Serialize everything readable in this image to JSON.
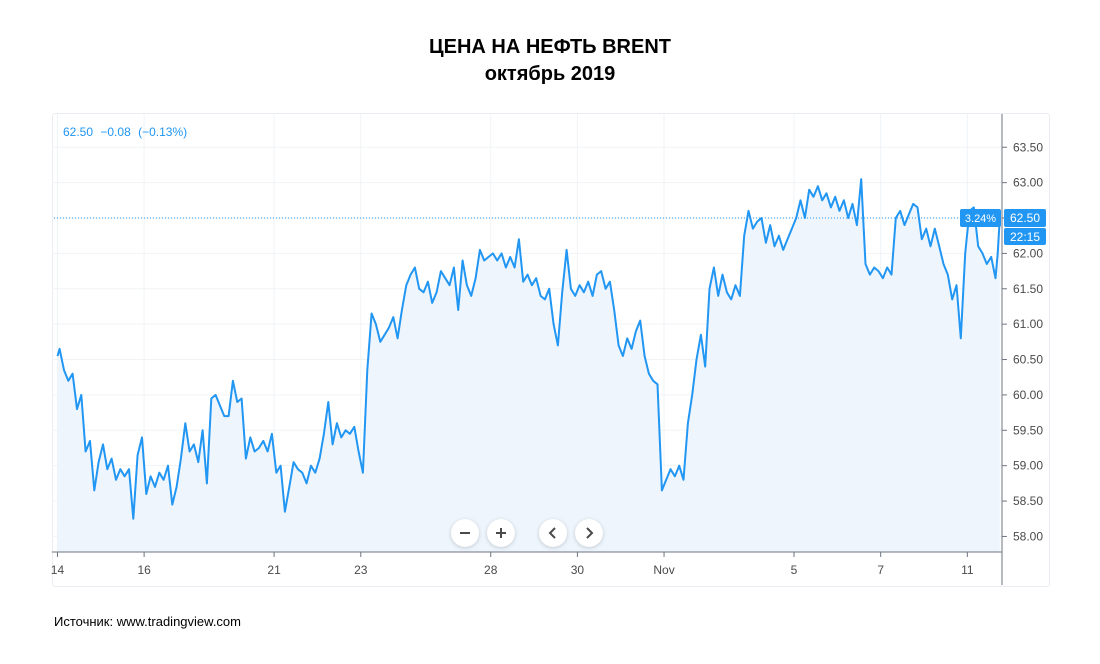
{
  "title": "ЦЕНА НА НЕФТЬ BRENT",
  "subtitle": "октябрь 2019",
  "legend": {
    "price": "62.50",
    "change": "−0.08",
    "change_pct": "(−0.13%)"
  },
  "source": "Источник: www.tradingview.com",
  "controls": {
    "zoom_out": "minus-icon",
    "zoom_in": "plus-icon",
    "scroll_left": "chevron-left-icon",
    "scroll_right": "chevron-right-icon"
  },
  "colors": {
    "line": "#2196f3",
    "area": "#eef5fd",
    "grid": "#f0f3f6",
    "axis_text": "#4a4a4a"
  },
  "chart_data": {
    "type": "area",
    "title": "ЦЕНА НА НЕФТЬ BRENT",
    "subtitle": "октябрь 2019",
    "x_axis": {
      "ticks": [
        {
          "label": "14",
          "x": 0
        },
        {
          "label": "16",
          "x": 2
        },
        {
          "label": "21",
          "x": 5
        },
        {
          "label": "23",
          "x": 7
        },
        {
          "label": "28",
          "x": 10
        },
        {
          "label": "30",
          "x": 12
        },
        {
          "label": "Nov",
          "x": 14
        },
        {
          "label": "5",
          "x": 17
        },
        {
          "label": "7",
          "x": 19
        },
        {
          "label": "11",
          "x": 21
        }
      ],
      "range": [
        -0.08,
        21.8
      ]
    },
    "y_axis": {
      "ticks": [
        "58.00",
        "58.50",
        "59.00",
        "59.50",
        "60.00",
        "60.50",
        "61.00",
        "61.50",
        "62.00",
        "62.50",
        "63.00",
        "63.50"
      ],
      "range": [
        57.78,
        63.97
      ]
    },
    "last_price": {
      "value": 62.5,
      "label": "62.50",
      "pct_label": "3.24%",
      "countdown": "22:15"
    },
    "grid": true,
    "series": [
      {
        "values": [
          [
            0.0,
            60.55
          ],
          [
            0.05,
            60.65
          ],
          [
            0.15,
            60.35
          ],
          [
            0.25,
            60.2
          ],
          [
            0.35,
            60.3
          ],
          [
            0.45,
            59.8
          ],
          [
            0.55,
            60.0
          ],
          [
            0.65,
            59.2
          ],
          [
            0.75,
            59.35
          ],
          [
            0.85,
            58.65
          ],
          [
            0.95,
            59.05
          ],
          [
            1.05,
            59.3
          ],
          [
            1.15,
            58.95
          ],
          [
            1.25,
            59.1
          ],
          [
            1.35,
            58.8
          ],
          [
            1.45,
            58.95
          ],
          [
            1.55,
            58.85
          ],
          [
            1.65,
            58.95
          ],
          [
            1.75,
            58.25
          ],
          [
            1.85,
            59.15
          ],
          [
            1.95,
            59.4
          ],
          [
            2.05,
            58.6
          ],
          [
            2.15,
            58.85
          ],
          [
            2.25,
            58.7
          ],
          [
            2.35,
            58.9
          ],
          [
            2.45,
            58.8
          ],
          [
            2.55,
            59.0
          ],
          [
            2.65,
            58.45
          ],
          [
            2.75,
            58.7
          ],
          [
            2.85,
            59.1
          ],
          [
            2.95,
            59.6
          ],
          [
            3.05,
            59.2
          ],
          [
            3.15,
            59.3
          ],
          [
            3.25,
            59.05
          ],
          [
            3.35,
            59.5
          ],
          [
            3.45,
            58.75
          ],
          [
            3.55,
            59.95
          ],
          [
            3.65,
            60.0
          ],
          [
            3.75,
            59.85
          ],
          [
            3.85,
            59.7
          ],
          [
            3.95,
            59.7
          ],
          [
            4.05,
            60.2
          ],
          [
            4.15,
            59.9
          ],
          [
            4.25,
            59.95
          ],
          [
            4.35,
            59.1
          ],
          [
            4.45,
            59.4
          ],
          [
            4.55,
            59.2
          ],
          [
            4.65,
            59.25
          ],
          [
            4.75,
            59.35
          ],
          [
            4.85,
            59.2
          ],
          [
            4.95,
            59.45
          ],
          [
            5.05,
            58.9
          ],
          [
            5.15,
            59.0
          ],
          [
            5.25,
            58.35
          ],
          [
            5.35,
            58.7
          ],
          [
            5.45,
            59.05
          ],
          [
            5.55,
            58.95
          ],
          [
            5.65,
            58.9
          ],
          [
            5.75,
            58.75
          ],
          [
            5.85,
            59.0
          ],
          [
            5.95,
            58.9
          ],
          [
            6.05,
            59.1
          ],
          [
            6.15,
            59.45
          ],
          [
            6.25,
            59.9
          ],
          [
            6.35,
            59.3
          ],
          [
            6.45,
            59.6
          ],
          [
            6.55,
            59.4
          ],
          [
            6.65,
            59.5
          ],
          [
            6.75,
            59.45
          ],
          [
            6.85,
            59.55
          ],
          [
            6.95,
            59.2
          ],
          [
            7.05,
            58.9
          ],
          [
            7.15,
            60.35
          ],
          [
            7.25,
            61.15
          ],
          [
            7.35,
            61.0
          ],
          [
            7.45,
            60.75
          ],
          [
            7.55,
            60.85
          ],
          [
            7.65,
            60.95
          ],
          [
            7.75,
            61.1
          ],
          [
            7.85,
            60.8
          ],
          [
            7.95,
            61.2
          ],
          [
            8.05,
            61.55
          ],
          [
            8.15,
            61.7
          ],
          [
            8.25,
            61.8
          ],
          [
            8.35,
            61.5
          ],
          [
            8.45,
            61.45
          ],
          [
            8.55,
            61.6
          ],
          [
            8.65,
            61.3
          ],
          [
            8.75,
            61.45
          ],
          [
            8.85,
            61.75
          ],
          [
            8.95,
            61.65
          ],
          [
            9.05,
            61.55
          ],
          [
            9.15,
            61.8
          ],
          [
            9.25,
            61.2
          ],
          [
            9.35,
            61.9
          ],
          [
            9.45,
            61.55
          ],
          [
            9.55,
            61.4
          ],
          [
            9.65,
            61.65
          ],
          [
            9.75,
            62.05
          ],
          [
            9.85,
            61.9
          ],
          [
            9.95,
            61.95
          ],
          [
            10.05,
            62.0
          ],
          [
            10.15,
            61.9
          ],
          [
            10.25,
            62.0
          ],
          [
            10.35,
            61.8
          ],
          [
            10.45,
            61.95
          ],
          [
            10.55,
            61.8
          ],
          [
            10.65,
            62.2
          ],
          [
            10.75,
            61.6
          ],
          [
            10.85,
            61.7
          ],
          [
            10.95,
            61.55
          ],
          [
            11.05,
            61.65
          ],
          [
            11.15,
            61.4
          ],
          [
            11.25,
            61.35
          ],
          [
            11.35,
            61.5
          ],
          [
            11.45,
            61.0
          ],
          [
            11.55,
            60.7
          ],
          [
            11.65,
            61.45
          ],
          [
            11.75,
            62.05
          ],
          [
            11.85,
            61.5
          ],
          [
            11.95,
            61.4
          ],
          [
            12.05,
            61.55
          ],
          [
            12.15,
            61.45
          ],
          [
            12.25,
            61.6
          ],
          [
            12.35,
            61.4
          ],
          [
            12.45,
            61.7
          ],
          [
            12.55,
            61.75
          ],
          [
            12.65,
            61.5
          ],
          [
            12.75,
            61.6
          ],
          [
            12.85,
            61.2
          ],
          [
            12.95,
            60.7
          ],
          [
            13.05,
            60.55
          ],
          [
            13.15,
            60.8
          ],
          [
            13.25,
            60.65
          ],
          [
            13.35,
            60.9
          ],
          [
            13.45,
            61.05
          ],
          [
            13.55,
            60.55
          ],
          [
            13.65,
            60.3
          ],
          [
            13.75,
            60.2
          ],
          [
            13.85,
            60.15
          ],
          [
            13.95,
            58.65
          ],
          [
            14.05,
            58.8
          ],
          [
            14.15,
            58.95
          ],
          [
            14.25,
            58.85
          ],
          [
            14.35,
            59.0
          ],
          [
            14.45,
            58.8
          ],
          [
            14.55,
            59.6
          ],
          [
            14.65,
            60.0
          ],
          [
            14.75,
            60.5
          ],
          [
            14.85,
            60.85
          ],
          [
            14.95,
            60.4
          ],
          [
            15.05,
            61.5
          ],
          [
            15.15,
            61.8
          ],
          [
            15.25,
            61.4
          ],
          [
            15.35,
            61.7
          ],
          [
            15.45,
            61.45
          ],
          [
            15.55,
            61.35
          ],
          [
            15.65,
            61.55
          ],
          [
            15.75,
            61.4
          ],
          [
            15.85,
            62.25
          ],
          [
            15.95,
            62.6
          ],
          [
            16.05,
            62.35
          ],
          [
            16.15,
            62.45
          ],
          [
            16.25,
            62.5
          ],
          [
            16.35,
            62.15
          ],
          [
            16.45,
            62.4
          ],
          [
            16.55,
            62.1
          ],
          [
            16.65,
            62.25
          ],
          [
            16.75,
            62.05
          ],
          [
            16.85,
            62.2
          ],
          [
            16.95,
            62.35
          ],
          [
            17.05,
            62.5
          ],
          [
            17.15,
            62.75
          ],
          [
            17.25,
            62.5
          ],
          [
            17.35,
            62.9
          ],
          [
            17.45,
            62.8
          ],
          [
            17.55,
            62.95
          ],
          [
            17.65,
            62.75
          ],
          [
            17.75,
            62.85
          ],
          [
            17.85,
            62.65
          ],
          [
            17.95,
            62.8
          ],
          [
            18.05,
            62.6
          ],
          [
            18.15,
            62.75
          ],
          [
            18.25,
            62.5
          ],
          [
            18.35,
            62.7
          ],
          [
            18.45,
            62.4
          ],
          [
            18.55,
            63.05
          ],
          [
            18.65,
            61.85
          ],
          [
            18.75,
            61.7
          ],
          [
            18.85,
            61.8
          ],
          [
            18.95,
            61.75
          ],
          [
            19.05,
            61.65
          ],
          [
            19.15,
            61.8
          ],
          [
            19.25,
            61.7
          ],
          [
            19.35,
            62.5
          ],
          [
            19.45,
            62.6
          ],
          [
            19.55,
            62.4
          ],
          [
            19.65,
            62.55
          ],
          [
            19.75,
            62.7
          ],
          [
            19.85,
            62.65
          ],
          [
            19.95,
            62.2
          ],
          [
            20.05,
            62.35
          ],
          [
            20.15,
            62.1
          ],
          [
            20.25,
            62.35
          ],
          [
            20.35,
            62.1
          ],
          [
            20.45,
            61.85
          ],
          [
            20.55,
            61.7
          ],
          [
            20.65,
            61.35
          ],
          [
            20.75,
            61.55
          ],
          [
            20.85,
            60.8
          ],
          [
            20.95,
            62.0
          ],
          [
            21.05,
            62.6
          ],
          [
            21.15,
            62.65
          ],
          [
            21.25,
            62.1
          ],
          [
            21.35,
            62.0
          ],
          [
            21.45,
            61.85
          ],
          [
            21.55,
            61.95
          ],
          [
            21.65,
            61.65
          ],
          [
            21.7,
            62.0
          ],
          [
            21.75,
            62.5
          ]
        ]
      }
    ]
  }
}
